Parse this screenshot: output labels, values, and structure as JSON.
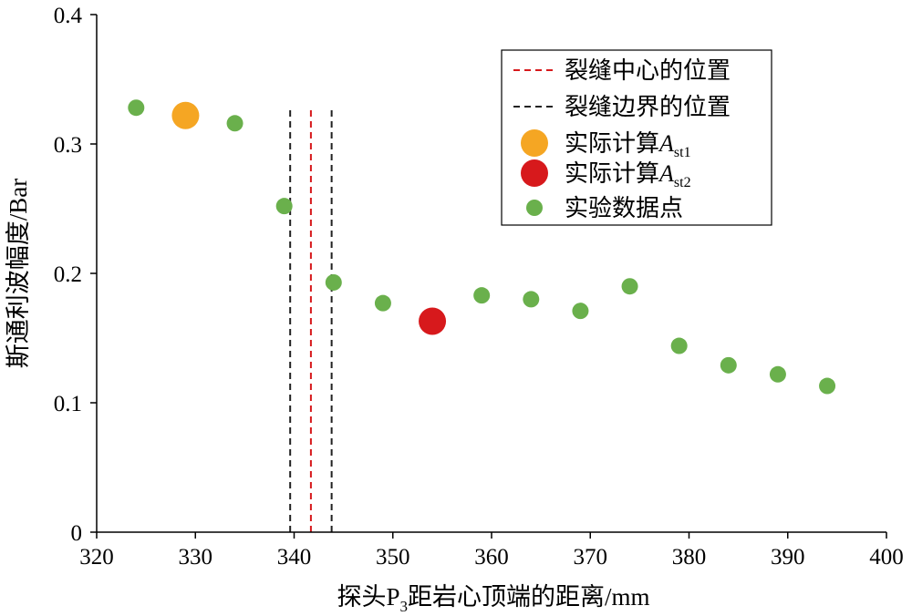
{
  "chart_data": {
    "type": "scatter",
    "xlabel_prefix": "探头P",
    "xlabel_sub": "3",
    "xlabel_suffix": "距岩心顶端的距离/mm",
    "ylabel": "斯通利波幅度/Bar",
    "xlim": [
      320,
      400
    ],
    "ylim": [
      0,
      0.4
    ],
    "xticks": [
      320,
      330,
      340,
      350,
      360,
      370,
      380,
      390,
      400
    ],
    "yticks": [
      0,
      0.1,
      0.2,
      0.3,
      0.4
    ],
    "xtick_labels": [
      "320",
      "330",
      "340",
      "350",
      "360",
      "370",
      "380",
      "390",
      "400"
    ],
    "ytick_labels": [
      "0",
      "0.1",
      "0.2",
      "0.3",
      "0.4"
    ],
    "grid": false,
    "legend_position": "top-right",
    "series": [
      {
        "name": "实验数据点",
        "kind": "scatter",
        "color": "#6ab04c",
        "x": [
          324,
          334,
          339,
          344,
          349,
          359,
          364,
          369,
          374,
          379,
          384,
          389,
          394
        ],
        "y": [
          0.328,
          0.316,
          0.252,
          0.193,
          0.177,
          0.183,
          0.18,
          0.171,
          0.19,
          0.144,
          0.129,
          0.122,
          0.113
        ]
      },
      {
        "name_prefix": "实际计算",
        "name_math": "A",
        "name_sub": "st1",
        "kind": "scatter-large",
        "color": "#f5a623",
        "x": [
          329
        ],
        "y": [
          0.322
        ]
      },
      {
        "name_prefix": "实际计算",
        "name_math": "A",
        "name_sub": "st2",
        "kind": "scatter-large",
        "color": "#d7191c",
        "x": [
          354
        ],
        "y": [
          0.163
        ]
      }
    ],
    "vlines": [
      {
        "name": "裂缝中心的位置",
        "color": "#d7191c",
        "x": [
          341.7
        ],
        "y_top": 0.328
      },
      {
        "name": "裂缝边界的位置",
        "color": "#222222",
        "x": [
          339.6,
          343.8
        ],
        "y_top": 0.328
      }
    ]
  },
  "legend": {
    "center_label": "裂缝中心的位置",
    "boundary_label": "裂缝边界的位置",
    "ast1_prefix": "实际计算",
    "ast1_math": "A",
    "ast1_sub": "st1",
    "ast2_prefix": "实际计算",
    "ast2_math": "A",
    "ast2_sub": "st2",
    "data_label": "实验数据点"
  }
}
